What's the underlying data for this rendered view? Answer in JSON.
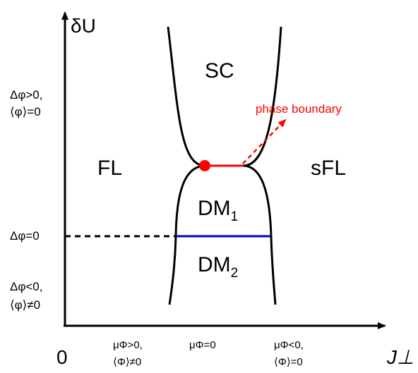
{
  "diagram": {
    "y_axis_title": "δU",
    "x_axis_title": "J⊥",
    "origin_label": "0",
    "regions": {
      "sc": "SC",
      "fl": "FL",
      "sfl": "sFL",
      "dm1": {
        "main": "DM",
        "sub": "1"
      },
      "dm2": {
        "main": "DM",
        "sub": "2"
      }
    },
    "annotation": "phase boundary",
    "left_labels": {
      "upper_line1": "Δφ>0,",
      "upper_line2": "⟨φ⟩=0",
      "middle": "Δφ=0",
      "lower_line1": "Δφ<0,",
      "lower_line2": "⟨φ⟩≠0"
    },
    "bottom_labels": {
      "left_line1": "μΦ>0,",
      "left_line2": "⟨Φ⟩≠0",
      "center": "μΦ=0",
      "right_line1": "μΦ<0,",
      "right_line2": "⟨Φ⟩=0"
    },
    "colors": {
      "boundary": "#000000",
      "blue_line": "#0000cc",
      "red_line": "#ff0000",
      "annotation": "#ff0000"
    }
  }
}
